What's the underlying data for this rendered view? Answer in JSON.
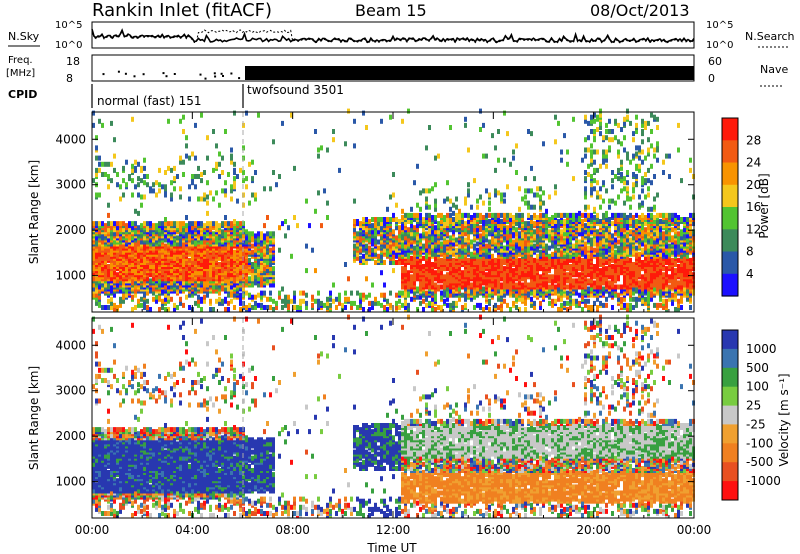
{
  "header": {
    "station": "Rankin Inlet (fitACF)",
    "beam": "Beam 15",
    "date": "08/Oct/2013"
  },
  "aux_panels": {
    "nsky_label": "N.Sky",
    "nsearch_label": "N.Search",
    "nsky_ticks": [
      "10^5",
      "10^0"
    ],
    "nsearch_ticks": [
      "10^5",
      "10^0"
    ],
    "freq_label_line1": "Freq.",
    "freq_label_line2": "[MHz]",
    "freq_ticks": [
      "18",
      "8"
    ],
    "nave_label": "Nave",
    "nave_ticks": [
      "60",
      "0"
    ],
    "cpid_label": "CPID",
    "cpid_modes": [
      {
        "name": "normal (fast) 151",
        "start_hour": 0,
        "end_hour": 6
      },
      {
        "name": "twofsound 3501",
        "start_hour": 6,
        "end_hour": 24
      }
    ]
  },
  "colors": {
    "power_scale": [
      "#1c10ff",
      "#2a58a8",
      "#3c8a5a",
      "#52c431",
      "#f4c71c",
      "#f89300",
      "#f25a12",
      "#ff1a0a"
    ],
    "velocity_scale": [
      "#2838b0",
      "#3a74b0",
      "#38a040",
      "#78cc40",
      "#c8c8c8",
      "#f0a030",
      "#f08020",
      "#e85020",
      "#ff1010"
    ]
  },
  "chart_data": [
    {
      "type": "heatmap",
      "title": "",
      "xlabel": "",
      "ylabel": "Slant Range [km]",
      "x_ticks": [
        "00:00",
        "04:00",
        "08:00",
        "12:00",
        "16:00",
        "20:00",
        "00:00"
      ],
      "x_range_hours": [
        0,
        24
      ],
      "y_ticks": [
        1000,
        2000,
        3000,
        4000
      ],
      "ylim": [
        200,
        4600
      ],
      "colorbar": {
        "label": "Power [dB]",
        "ticks": [
          4,
          8,
          12,
          16,
          20,
          24,
          28
        ],
        "range": [
          0,
          32
        ]
      }
    },
    {
      "type": "heatmap",
      "title": "",
      "xlabel": "Time UT",
      "ylabel": "Slant Range [km]",
      "x_ticks": [
        "00:00",
        "04:00",
        "08:00",
        "12:00",
        "16:00",
        "20:00",
        "00:00"
      ],
      "x_range_hours": [
        0,
        24
      ],
      "y_ticks": [
        1000,
        2000,
        3000,
        4000
      ],
      "ylim": [
        200,
        4600
      ],
      "colorbar": {
        "label": "Velocity [m s⁻¹]",
        "ticks": [
          "1000",
          "500",
          "100",
          "25",
          "-25",
          "-100",
          "-500",
          "-1000"
        ]
      }
    }
  ]
}
